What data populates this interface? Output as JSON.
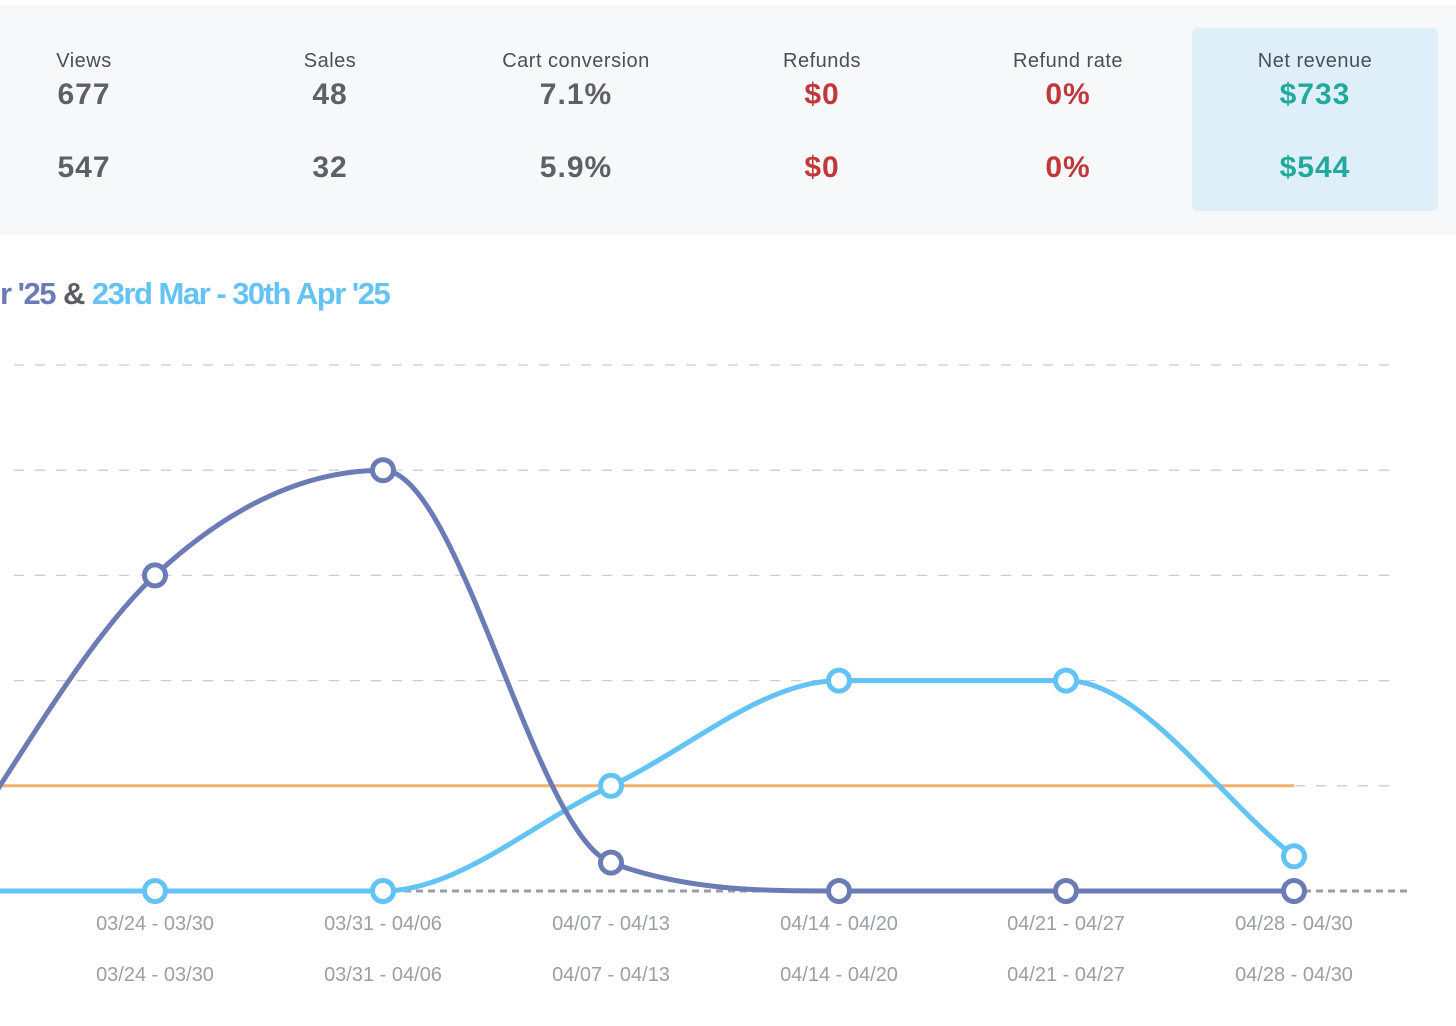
{
  "stats": [
    {
      "label": "Views",
      "current": "677",
      "previous": "547",
      "color": "neutral"
    },
    {
      "label": "Sales",
      "current": "48",
      "previous": "32",
      "color": "neutral"
    },
    {
      "label": "Cart conversion",
      "current": "7.1%",
      "previous": "5.9%",
      "color": "neutral"
    },
    {
      "label": "Refunds",
      "current": "$0",
      "previous": "$0",
      "color": "red"
    },
    {
      "label": "Refund rate",
      "current": "0%",
      "previous": "0%",
      "color": "red"
    },
    {
      "label": "Net revenue",
      "current": "$733",
      "previous": "$544",
      "color": "teal"
    }
  ],
  "period": {
    "first": "r '25",
    "separator": "&",
    "second": "23rd Mar - 30th Apr '25"
  },
  "colors": {
    "series_dark": "#6a7bb5",
    "series_light": "#62c3f4",
    "reference": "#f1b16d",
    "red": "#c0383a",
    "teal": "#23a99b"
  },
  "chart_data": {
    "type": "line",
    "categories": [
      "03/24 - 03/30",
      "03/31 - 04/06",
      "04/07 - 04/13",
      "04/14 - 04/20",
      "04/21 - 04/27",
      "04/28 - 04/30"
    ],
    "categories_row2": [
      "03/24 - 03/30",
      "03/31 - 04/06",
      "04/07 - 04/13",
      "04/14 - 04/20",
      "04/21 - 04/27",
      "04/28 - 04/30"
    ],
    "series": [
      {
        "id": "dark",
        "values": [
          3.0,
          4.0,
          0.27,
          0,
          0,
          0
        ]
      },
      {
        "id": "light",
        "values": [
          0,
          0,
          1.0,
          2.0,
          2.0,
          0.33
        ]
      }
    ],
    "reference_line": 1.0,
    "ylim": [
      0,
      5
    ],
    "grid": true
  }
}
